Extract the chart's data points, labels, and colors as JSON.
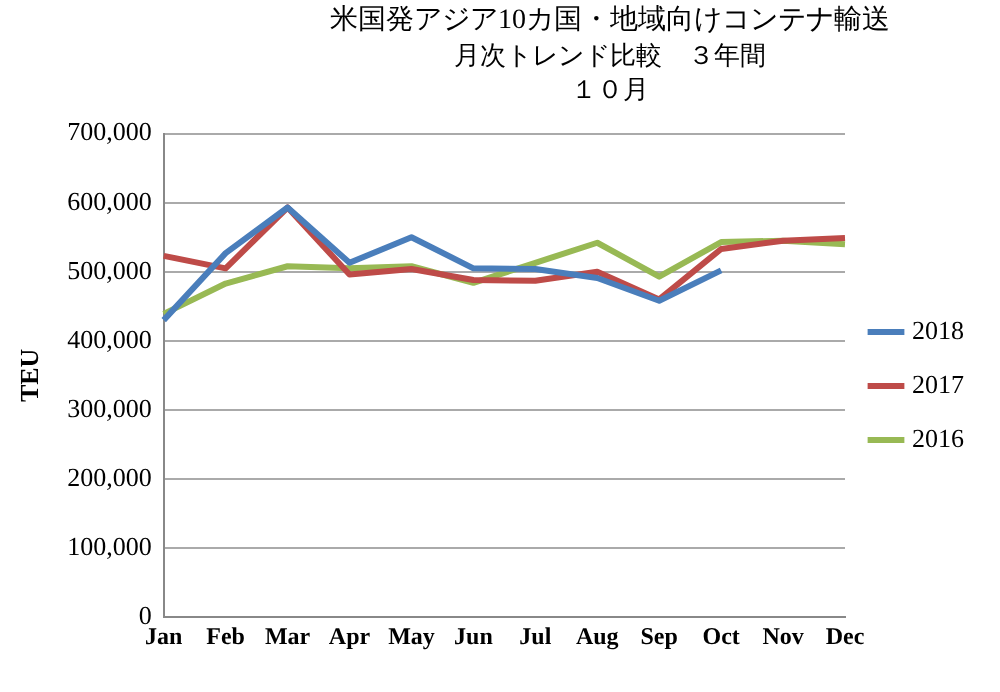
{
  "chart_data": {
    "type": "line",
    "title": "米国発アジア10カ国・地域向けコンテナ輸送",
    "subtitle": "月次トレンド比較　３年間",
    "annotations": [
      "１０月"
    ],
    "ylabel": "TEU",
    "categories": [
      "Jan",
      "Feb",
      "Mar",
      "Apr",
      "May",
      "Jun",
      "Jul",
      "Aug",
      "Sep",
      "Oct",
      "Nov",
      "Dec"
    ],
    "series": [
      {
        "name": "2018",
        "color": "#4a7ebb",
        "values": [
          430000,
          527000,
          593000,
          513000,
          550000,
          505000,
          504000,
          491000,
          458000,
          502000,
          null,
          null
        ]
      },
      {
        "name": "2017",
        "color": "#be4b48",
        "values": [
          523000,
          505000,
          593000,
          496000,
          504000,
          488000,
          487000,
          500000,
          460000,
          533000,
          545000,
          549000
        ]
      },
      {
        "name": "2016",
        "color": "#98b954",
        "values": [
          439000,
          483000,
          508000,
          505000,
          508000,
          484000,
          513000,
          542000,
          493000,
          543000,
          545000,
          540000
        ]
      }
    ],
    "ylim": [
      0,
      700000
    ],
    "yticks": [
      0,
      {
        "value": 100000,
        "label": "100,000"
      },
      {
        "value": 200000,
        "label": "200,000"
      },
      {
        "value": 300000,
        "label": "300,000"
      },
      {
        "value": 400000,
        "label": "400,000"
      },
      {
        "value": 500000,
        "label": "500,000"
      },
      {
        "value": 600000,
        "label": "600,000"
      },
      {
        "value": 700000,
        "label": "700,000"
      }
    ],
    "grid": "y",
    "legend": "right",
    "marker": "none",
    "line_style": "solid"
  }
}
